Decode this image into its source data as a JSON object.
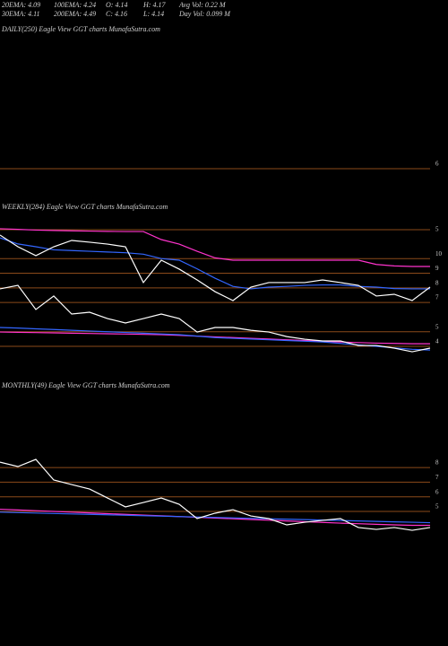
{
  "header": {
    "row1": [
      "20EMA: 4.09",
      "100EMA: 4.24",
      "O: 4.14",
      "H: 4.17",
      "Avg Vol: 0.22  M"
    ],
    "row2": [
      "30EMA: 4.11",
      "200EMA: 4.49",
      "C: 4.16",
      "L: 4.14",
      "Day Vol: 0.099 M"
    ]
  },
  "chart_data": [
    {
      "type": "line",
      "title": "DAILY(250) Eagle  View  GGT charts MunafaSutra.com",
      "ylim": [
        5.57,
        15.08
      ],
      "yticks": [
        6
      ],
      "series": []
    },
    {
      "type": "line",
      "title": "WEEKLY(284) Eagle  View  GGT charts MunafaSutra.com",
      "top_label": "5",
      "ylim": [
        3.45,
        12.65
      ],
      "yticks": [
        10,
        9,
        8,
        7,
        5,
        4
      ],
      "categories": [
        null,
        null,
        null,
        null,
        null,
        null,
        null,
        null,
        null,
        null,
        null,
        null,
        null,
        null,
        null,
        null,
        null,
        null,
        null,
        null,
        null,
        null,
        null,
        null,
        null
      ],
      "series": [
        {
          "color": "#ff33cc",
          "values": [
            12.04,
            12.0,
            11.95,
            11.92,
            11.9,
            11.88,
            11.86,
            11.85,
            11.85,
            11.3,
            10.99,
            10.5,
            10.05,
            9.89,
            9.89,
            9.89,
            9.89,
            9.89,
            9.89,
            9.89,
            9.89,
            9.6,
            9.5,
            9.46,
            9.46
          ]
        },
        {
          "color": "#3366ff",
          "values": [
            11.42,
            11.0,
            10.81,
            10.6,
            10.55,
            10.5,
            10.45,
            10.4,
            10.3,
            10.0,
            9.89,
            9.3,
            8.66,
            8.1,
            7.93,
            8.05,
            8.1,
            8.17,
            8.2,
            8.2,
            8.1,
            8.05,
            7.95,
            7.93,
            7.93
          ]
        },
        {
          "color": "#ffffff",
          "values": [
            11.61,
            10.81,
            10.2,
            10.81,
            11.24,
            11.12,
            10.99,
            10.81,
            8.36,
            9.89,
            9.28,
            8.54,
            7.74,
            7.13,
            8.05,
            8.36,
            8.36,
            8.36,
            8.54,
            8.36,
            8.17,
            7.44,
            7.56,
            7.13,
            8.05
          ]
        },
        {
          "color": "#ff33cc",
          "values": [
            4.98,
            4.96,
            4.94,
            4.92,
            4.9,
            4.88,
            4.86,
            4.84,
            4.82,
            4.8,
            4.75,
            4.7,
            4.65,
            4.6,
            4.55,
            4.5,
            4.45,
            4.4,
            4.35,
            4.3,
            4.26,
            4.22,
            4.2,
            4.18,
            4.18
          ]
        },
        {
          "color": "#3366ff",
          "values": [
            5.29,
            5.25,
            5.2,
            5.15,
            5.1,
            5.05,
            5.0,
            4.95,
            4.9,
            4.85,
            4.8,
            4.7,
            4.6,
            4.55,
            4.5,
            4.45,
            4.4,
            4.35,
            4.3,
            4.2,
            4.1,
            4.0,
            3.9,
            3.8,
            3.75
          ]
        },
        {
          "color": "#ffffff",
          "values": [
            7.93,
            8.17,
            6.52,
            7.44,
            6.21,
            6.33,
            5.9,
            5.6,
            5.9,
            6.21,
            5.9,
            4.98,
            5.29,
            5.29,
            5.1,
            4.98,
            4.67,
            4.49,
            4.37,
            4.37,
            4.06,
            4.06,
            3.88,
            3.63,
            3.88
          ]
        }
      ]
    },
    {
      "type": "line",
      "title": "MONTHLY(49) Eagle  View  GGT charts MunafaSutra.com",
      "ylim": [
        3.16,
        12.98
      ],
      "yticks": [
        8,
        7,
        6,
        5
      ],
      "categories": [
        null,
        null,
        null,
        null,
        null,
        null,
        null,
        null,
        null,
        null,
        null,
        null,
        null,
        null,
        null,
        null,
        null,
        null,
        null,
        null,
        null,
        null,
        null,
        null,
        null
      ],
      "series": [
        {
          "color": "#ff33cc",
          "values": [
            5.15,
            5.1,
            5.05,
            5.0,
            4.95,
            4.9,
            4.85,
            4.8,
            4.75,
            4.7,
            4.65,
            4.6,
            4.55,
            4.5,
            4.45,
            4.4,
            4.35,
            4.3,
            4.25,
            4.2,
            4.16,
            4.12,
            4.08,
            4.05,
            4.05
          ]
        },
        {
          "color": "#3366ff",
          "values": [
            4.95,
            4.92,
            4.89,
            4.86,
            4.83,
            4.8,
            4.77,
            4.74,
            4.71,
            4.68,
            4.65,
            4.62,
            4.59,
            4.56,
            4.53,
            4.5,
            4.47,
            4.44,
            4.41,
            4.38,
            4.35,
            4.32,
            4.29,
            4.26,
            4.23
          ]
        },
        {
          "color": "#ffffff",
          "values": [
            8.37,
            8.07,
            8.56,
            7.15,
            6.84,
            6.53,
            5.92,
            5.31,
            5.61,
            5.92,
            5.49,
            4.51,
            4.88,
            5.12,
            4.69,
            4.51,
            4.08,
            4.26,
            4.39,
            4.51,
            3.9,
            3.77,
            3.9,
            3.71,
            3.9
          ]
        }
      ]
    }
  ]
}
